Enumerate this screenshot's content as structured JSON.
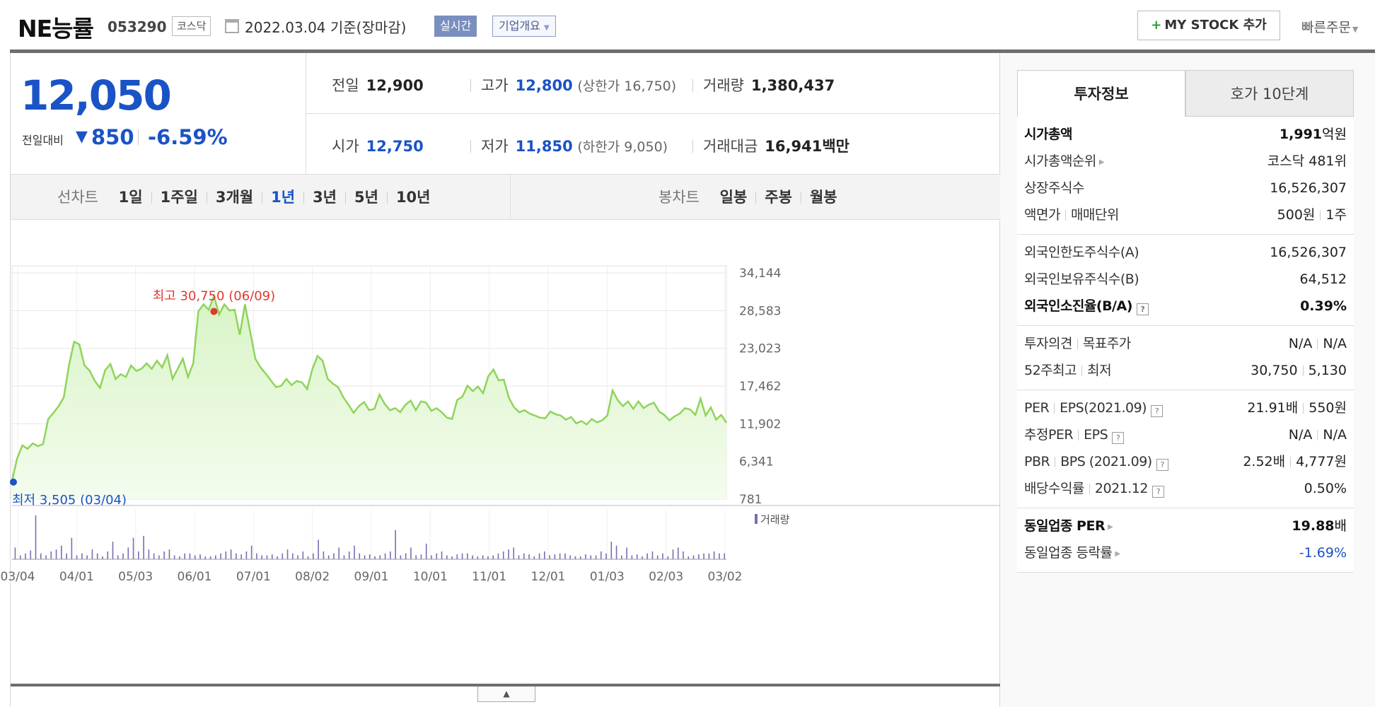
{
  "header": {
    "name": "NE능률",
    "code": "053290",
    "market": "코스닥",
    "date": "2022.03.04 기준(장마감)",
    "realtime": "실시간",
    "corp_overview": "기업개요",
    "mystock": "MY STOCK 추가",
    "quick_order": "빠른주문"
  },
  "price": {
    "now": "12,050",
    "compare_label": "전일대비",
    "compare_arrow": "▼",
    "compare_value": "850",
    "compare_rate": "-6.59%"
  },
  "quote": {
    "prev_label": "전일",
    "prev": "12,900",
    "high_label": "고가",
    "high": "12,800",
    "upper": "(상한가 16,750)",
    "volume_label": "거래량",
    "volume": "1,380,437",
    "open_label": "시가",
    "open": "12,750",
    "low_label": "저가",
    "low": "11,850",
    "lower": "(하한가 9,050)",
    "amount_label": "거래대금",
    "amount": "16,941",
    "amount_unit": "백만"
  },
  "tabs": {
    "line_label": "선차트",
    "line_items": [
      "1일",
      "1주일",
      "3개월",
      "1년",
      "3년",
      "5년",
      "10년"
    ],
    "line_selected": 3,
    "candle_label": "봉차트",
    "candle_items": [
      "일봉",
      "주봉",
      "월봉"
    ]
  },
  "chart_data": {
    "type": "area",
    "title": "",
    "y_ticks": [
      "34,144",
      "28,583",
      "23,023",
      "17,462",
      "11,902",
      "6,341",
      "781"
    ],
    "ylim": [
      781,
      34144
    ],
    "x_ticks": [
      "03/04",
      "04/01",
      "05/03",
      "06/01",
      "07/01",
      "08/02",
      "09/01",
      "10/01",
      "11/01",
      "12/01",
      "01/03",
      "02/03",
      "03/02"
    ],
    "grid": true,
    "max_label": "최고 30,750 (06/09)",
    "min_label": "최저 3,505 (03/04)",
    "volume_legend": "거래량",
    "series": [
      {
        "name": "",
        "values": [
          3505,
          6800,
          8700,
          8200,
          9000,
          8600,
          8900,
          12600,
          13500,
          14500,
          15800,
          20500,
          24000,
          23600,
          20500,
          19700,
          18200,
          17200,
          19800,
          20700,
          18500,
          19200,
          18800,
          20500,
          19700,
          20000,
          20800,
          20000,
          21200,
          20200,
          22000,
          18500,
          20000,
          21500,
          18800,
          20800,
          28500,
          29500,
          28700,
          30750,
          28000,
          29500,
          28600,
          28700,
          25000,
          29500,
          25500,
          21500,
          20200,
          19300,
          18300,
          17300,
          17500,
          18500,
          17600,
          18200,
          18000,
          17000,
          19900,
          21900,
          21200,
          18500,
          17800,
          17300,
          15800,
          14700,
          13500,
          14500,
          15100,
          13900,
          14100,
          16200,
          14800,
          13900,
          14200,
          13600,
          14700,
          15300,
          13900,
          15200,
          15000,
          13800,
          14200,
          13600,
          12800,
          12600,
          15400,
          15900,
          17500,
          16700,
          17400,
          16400,
          18900,
          19900,
          18300,
          18400,
          15700,
          14300,
          13600,
          13900,
          13400,
          13100,
          12800,
          12700,
          13700,
          13300,
          13100,
          12500,
          12900,
          11950,
          12300,
          11800,
          12600,
          12100,
          12400,
          13100,
          16800,
          15400,
          14500,
          15200,
          14100,
          15200,
          14200,
          14700,
          15000,
          13700,
          13200,
          12400,
          13000,
          13400,
          14200,
          14000,
          13200,
          15600,
          13100,
          14300,
          12500,
          13200,
          12050
        ]
      }
    ],
    "volume": [
      12,
      4,
      6,
      9,
      45,
      6,
      4,
      8,
      10,
      14,
      6,
      22,
      4,
      6,
      4,
      10,
      6,
      3,
      8,
      18,
      4,
      6,
      12,
      22,
      8,
      24,
      10,
      6,
      4,
      8,
      10,
      4,
      3,
      6,
      6,
      4,
      5,
      3,
      3,
      4,
      6,
      8,
      10,
      6,
      5,
      8,
      14,
      6,
      4,
      4,
      5,
      3,
      6,
      10,
      6,
      4,
      8,
      3,
      6,
      20,
      8,
      4,
      6,
      12,
      4,
      8,
      14,
      6,
      4,
      5,
      3,
      4,
      6,
      8,
      30,
      4,
      6,
      12,
      4,
      5,
      16,
      4,
      6,
      8,
      4,
      3,
      5,
      6,
      6,
      4,
      3,
      4,
      3,
      4,
      6,
      8,
      10,
      12,
      4,
      6,
      5,
      3,
      6,
      8,
      4,
      5,
      6,
      6,
      4,
      3,
      3,
      5,
      4,
      4,
      8,
      6,
      18,
      14,
      4,
      12,
      4,
      5,
      3,
      6,
      8,
      4,
      6,
      3,
      10,
      12,
      8,
      3,
      4,
      5,
      6,
      6,
      8,
      6,
      6
    ]
  },
  "right": {
    "tab_a": "투자정보",
    "tab_b": "호가 10단계",
    "s1": [
      {
        "k": "시가총액",
        "v": "1,991",
        "u": "억원"
      },
      {
        "k": "시가총액순위",
        "v": "코스닥 481위"
      },
      {
        "k": "상장주식수",
        "v": "16,526,307"
      },
      {
        "k": "액면가",
        "k2": "매매단위",
        "v": "500원",
        "v2": "1주"
      }
    ],
    "s2": [
      {
        "k": "외국인한도주식수(A)",
        "v": "16,526,307"
      },
      {
        "k": "외국인보유주식수(B)",
        "v": "64,512"
      },
      {
        "k": "외국인소진율(B/A)",
        "v": "0.39%"
      }
    ],
    "s3": [
      {
        "k": "투자의견",
        "k2": "목표주가",
        "v": "N/A",
        "v2": "N/A"
      },
      {
        "k": "52주최고",
        "k2": "최저",
        "v": "30,750",
        "v2": "5,130"
      }
    ],
    "s4": [
      {
        "k": "PER",
        "k2": "EPS(2021.09)",
        "v": "21.91배",
        "v2": "550원"
      },
      {
        "k": "추정PER",
        "k2": "EPS",
        "v": "N/A",
        "v2": "N/A"
      },
      {
        "k": "PBR",
        "k2": "BPS (2021.09)",
        "v": "2.52배",
        "v2": "4,777원"
      },
      {
        "k": "배당수익률",
        "k2": "2021.12",
        "v": "0.50%"
      }
    ],
    "s5": [
      {
        "k": "동일업종 PER",
        "v": "19.88",
        "u": "배"
      },
      {
        "k": "동일업종 등락률",
        "v": "-1.69%"
      }
    ],
    "qmark": "?"
  },
  "colors": {
    "blue": "#1a53c6",
    "red": "#e0392e",
    "line": "#8fd45a",
    "fill": "#d8f4c6",
    "volume": "#7a6db5"
  }
}
